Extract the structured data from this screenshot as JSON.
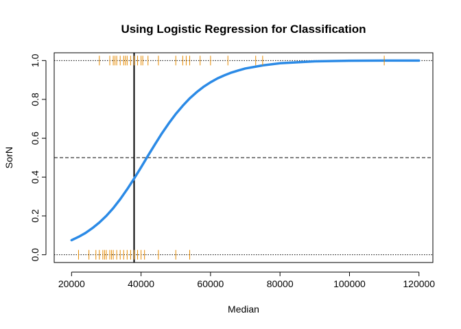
{
  "chart_data": {
    "type": "line",
    "title": "Using Logistic Regression for Classification",
    "xlabel": "Median",
    "ylabel": "SorN",
    "xlim": [
      15000,
      124000
    ],
    "ylim": [
      -0.04,
      1.04
    ],
    "x_ticks": [
      20000,
      40000,
      60000,
      80000,
      100000,
      120000
    ],
    "x_tick_labels": [
      "20000",
      "40000",
      "60000",
      "80000",
      "100000",
      "120000"
    ],
    "y_ticks": [
      0.0,
      0.2,
      0.4,
      0.6,
      0.8,
      1.0
    ],
    "y_tick_labels": [
      "0.0",
      "0.2",
      "0.4",
      "0.6",
      "0.8",
      "1.0"
    ],
    "series": [
      {
        "type": "line",
        "color": "#2b8ae6",
        "x": [
          20000,
          22000,
          24000,
          26000,
          28000,
          30000,
          32000,
          34000,
          36000,
          38000,
          40000,
          42000,
          44000,
          46000,
          48000,
          50000,
          52000,
          54000,
          56000,
          58000,
          60000,
          62000,
          64000,
          66000,
          68000,
          70000,
          75000,
          80000,
          90000,
          100000,
          110000,
          120000
        ],
        "y": [
          0.075,
          0.092,
          0.112,
          0.137,
          0.166,
          0.2,
          0.24,
          0.286,
          0.337,
          0.392,
          0.45,
          0.51,
          0.568,
          0.625,
          0.677,
          0.725,
          0.767,
          0.805,
          0.837,
          0.865,
          0.888,
          0.908,
          0.924,
          0.938,
          0.949,
          0.959,
          0.975,
          0.986,
          0.996,
          0.999,
          1.0,
          1.0
        ]
      },
      {
        "type": "rug",
        "color": "#e68a00",
        "y_level": 1,
        "x": [
          28000,
          31000,
          32000,
          32500,
          33000,
          34000,
          35000,
          35500,
          36000,
          37000,
          38000,
          39000,
          40000,
          40500,
          42000,
          45000,
          50000,
          52000,
          53000,
          54000,
          57000,
          60000,
          65000,
          73000,
          75000,
          110000
        ]
      },
      {
        "type": "rug",
        "color": "#e68a00",
        "y_level": 0,
        "x": [
          22000,
          25000,
          27000,
          28000,
          29000,
          29500,
          30000,
          31000,
          31500,
          32000,
          33000,
          34000,
          35000,
          36000,
          37000,
          38000,
          39000,
          40000,
          41000,
          45000,
          50000,
          54000
        ]
      }
    ],
    "reference_lines": [
      {
        "orientation": "horizontal",
        "value": 1.0,
        "style": "dotted"
      },
      {
        "orientation": "horizontal",
        "value": 0.5,
        "style": "dashed"
      },
      {
        "orientation": "horizontal",
        "value": 0.0,
        "style": "dotted"
      },
      {
        "orientation": "vertical",
        "value": 38000,
        "style": "solid"
      }
    ]
  }
}
